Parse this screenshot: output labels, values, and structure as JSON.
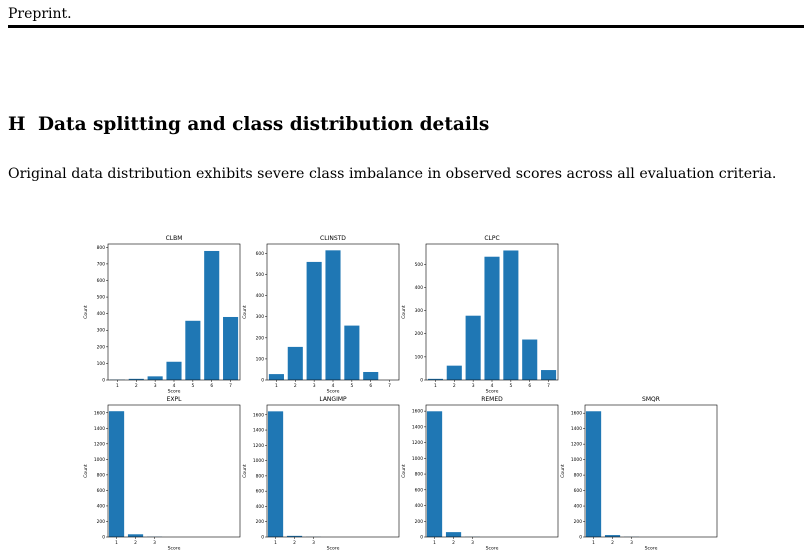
{
  "header": {
    "running_head": "Preprint."
  },
  "section": {
    "number": "H",
    "title": "Data splitting and class distribution details"
  },
  "paragraph": "Original data distribution exhibits severe class imbalance in observed scores across all evaluation criteria.",
  "chart_data": [
    {
      "type": "bar",
      "title": "CLBM",
      "xlabel": "Score",
      "ylabel": "Count",
      "categories": [
        "1",
        "2",
        "3",
        "4",
        "5",
        "6",
        "7"
      ],
      "values": [
        2,
        7,
        22,
        110,
        357,
        778,
        380
      ],
      "ylim": [
        0,
        820
      ],
      "yticks": [
        0,
        100,
        200,
        300,
        400,
        500,
        600,
        700,
        800
      ],
      "color": "#1f77b4"
    },
    {
      "type": "bar",
      "title": "CLINSTD",
      "xlabel": "Score",
      "ylabel": "Count",
      "categories": [
        "1",
        "2",
        "3",
        "4",
        "5",
        "6",
        "7"
      ],
      "values": [
        28,
        157,
        560,
        615,
        258,
        38,
        0
      ],
      "ylim": [
        0,
        645
      ],
      "yticks": [
        0,
        100,
        200,
        300,
        400,
        500,
        600
      ],
      "color": "#1f77b4"
    },
    {
      "type": "bar",
      "title": "CLPC",
      "xlabel": "Score",
      "ylabel": "Count",
      "categories": [
        "1",
        "2",
        "3",
        "4",
        "5",
        "6",
        "7"
      ],
      "values": [
        5,
        62,
        278,
        533,
        560,
        175,
        43
      ],
      "ylim": [
        0,
        588
      ],
      "yticks": [
        0,
        100,
        200,
        300,
        400,
        500
      ],
      "color": "#1f77b4"
    },
    {
      "type": "bar",
      "title": "EXPL",
      "xlabel": "Score",
      "ylabel": "Count",
      "categories": [
        "1",
        "2",
        "3"
      ],
      "values": [
        1620,
        35,
        3
      ],
      "ylim": [
        0,
        1700
      ],
      "yticks": [
        0,
        200,
        400,
        600,
        800,
        1000,
        1200,
        1400,
        1600
      ],
      "color": "#1f77b4"
    },
    {
      "type": "bar",
      "title": "LANGIMP",
      "xlabel": "Score",
      "ylabel": "Count",
      "categories": [
        "1",
        "2",
        "3"
      ],
      "values": [
        1645,
        15,
        2
      ],
      "ylim": [
        0,
        1728
      ],
      "yticks": [
        0,
        200,
        400,
        600,
        800,
        1000,
        1200,
        1400,
        1600
      ],
      "color": "#1f77b4"
    },
    {
      "type": "bar",
      "title": "REMED",
      "xlabel": "Score",
      "ylabel": "Count",
      "categories": [
        "1",
        "2",
        "3"
      ],
      "values": [
        1598,
        62,
        2
      ],
      "ylim": [
        0,
        1678
      ],
      "yticks": [
        0,
        200,
        400,
        600,
        800,
        1000,
        1200,
        1400,
        1600
      ],
      "color": "#1f77b4"
    },
    {
      "type": "bar",
      "title": "SMQR",
      "xlabel": "Score",
      "ylabel": "Count",
      "categories": [
        "1",
        "2",
        "3"
      ],
      "values": [
        1625,
        25,
        2
      ],
      "ylim": [
        0,
        1706
      ],
      "yticks": [
        0,
        200,
        400,
        600,
        800,
        1000,
        1200,
        1400,
        1600
      ],
      "color": "#1f77b4"
    }
  ]
}
